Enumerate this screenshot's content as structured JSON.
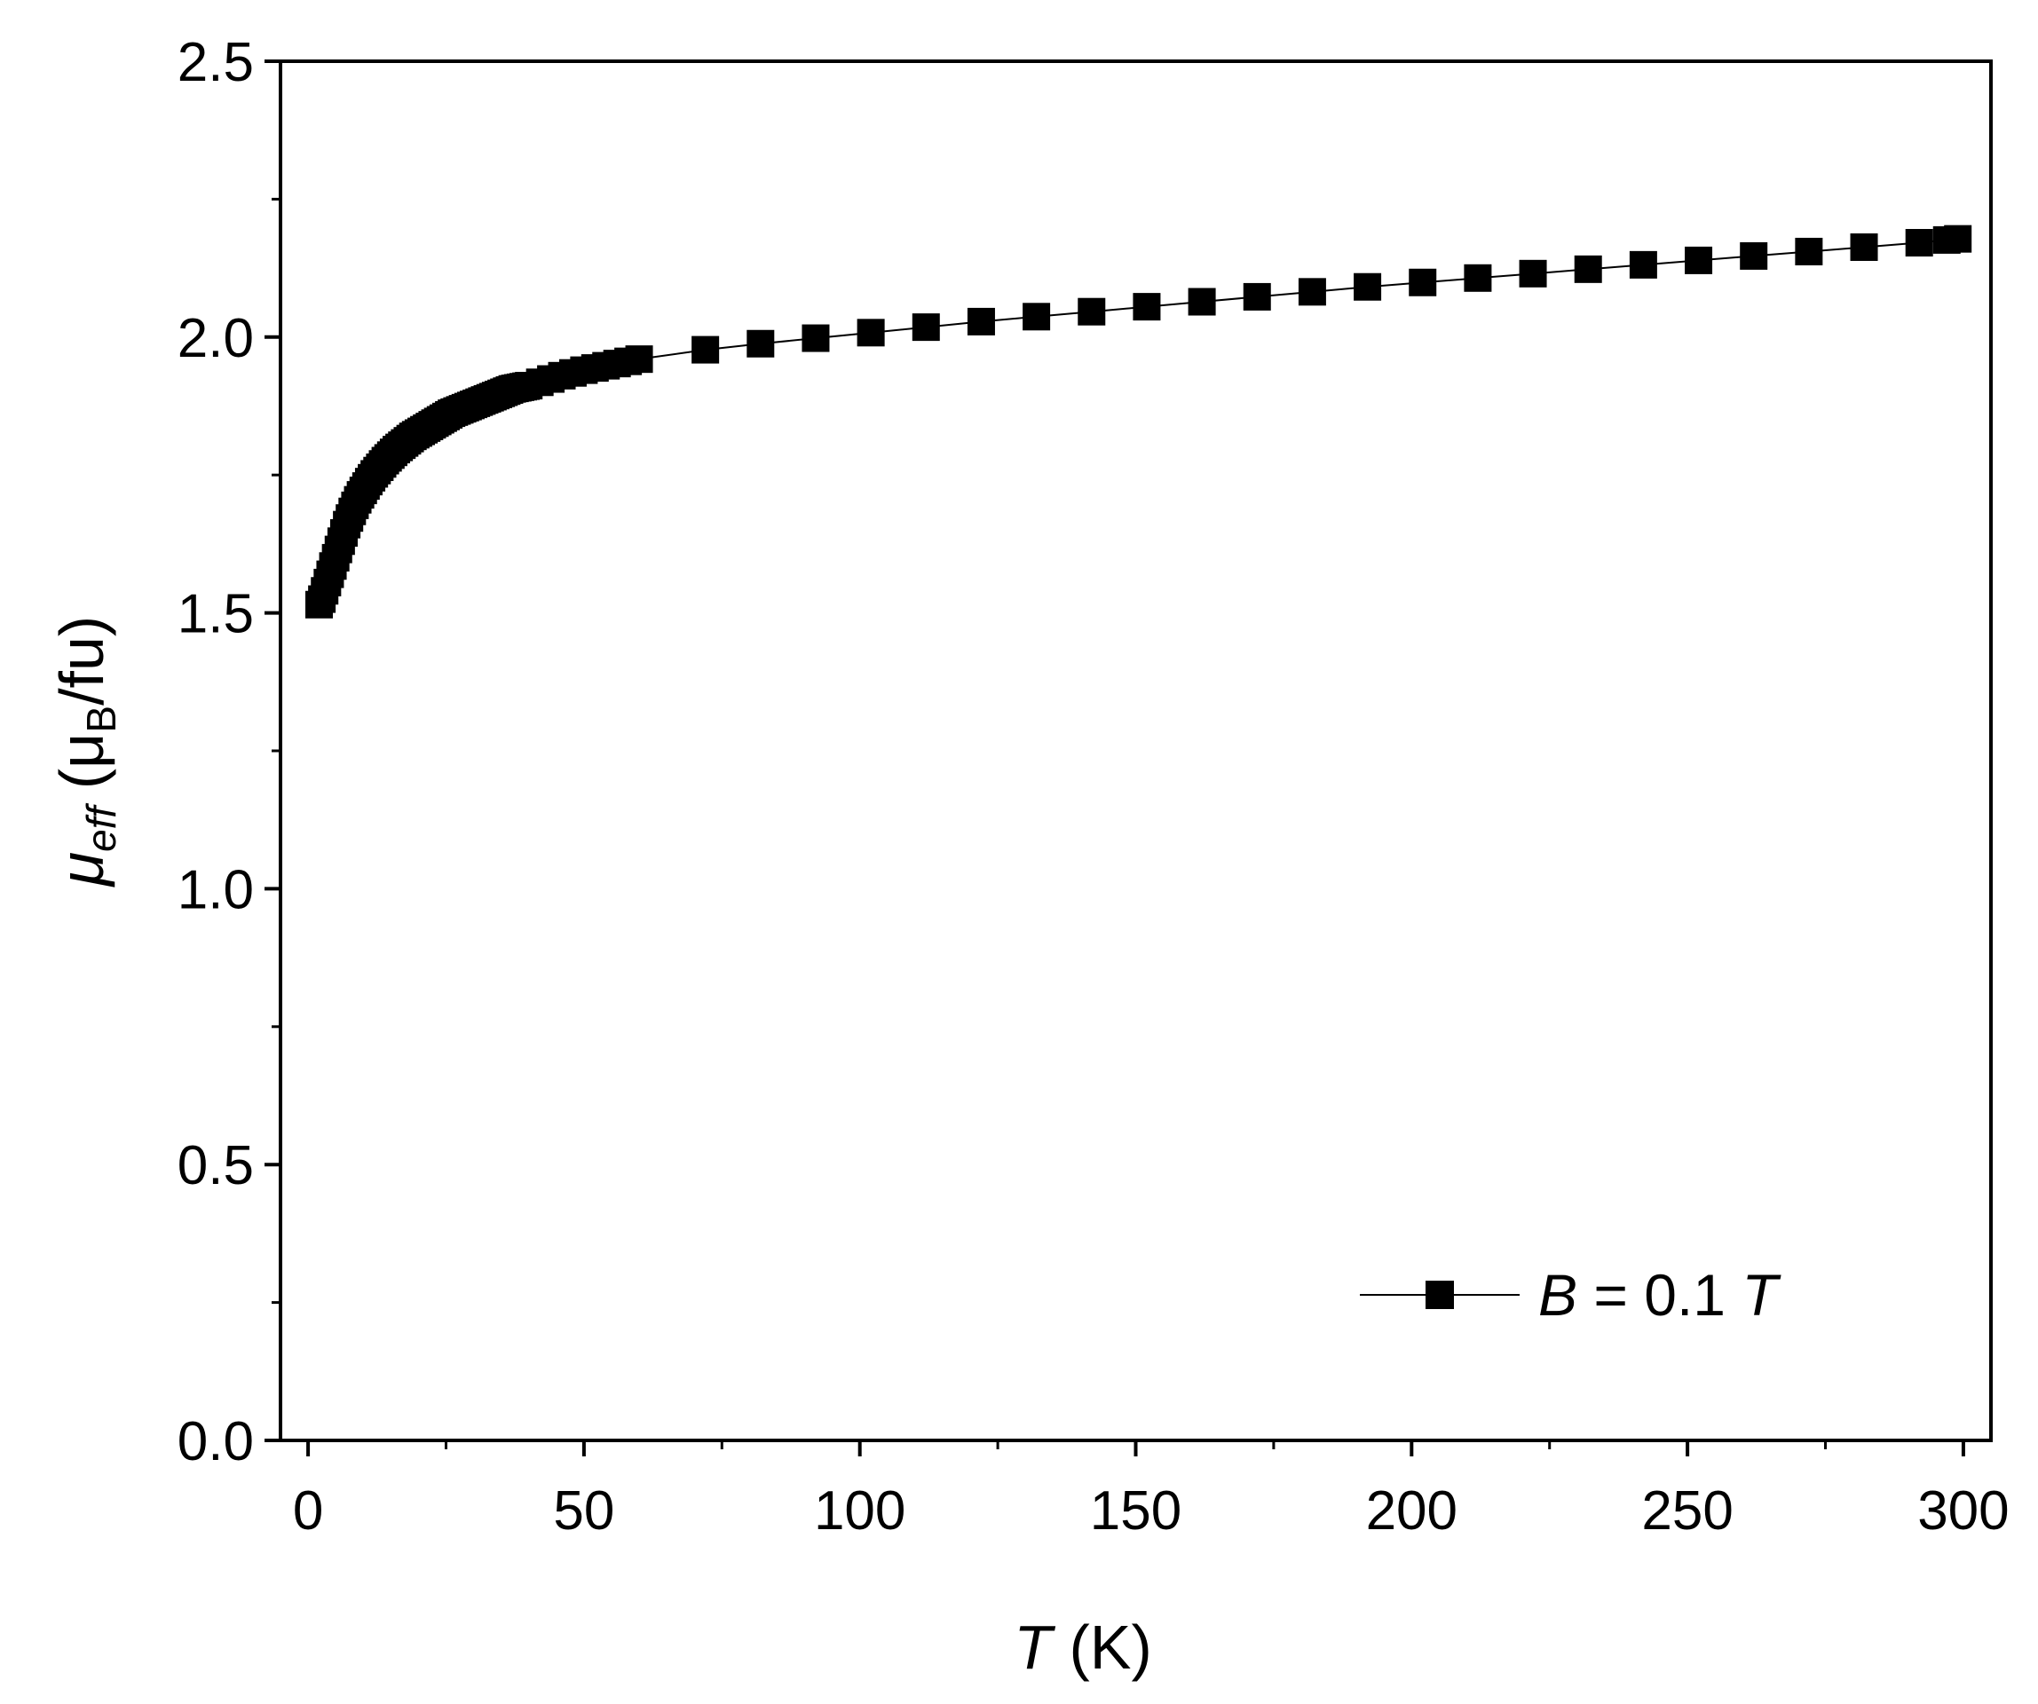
{
  "chart_data": {
    "type": "scatter",
    "xlabel": {
      "italic": "T",
      "rest": " (K)"
    },
    "ylabel": {
      "mu": "μ",
      "sub": "eff",
      "paren_open": " (μ",
      "unit_sub": "B",
      "unit_rest": "/fu)"
    },
    "xlim": [
      -5,
      305
    ],
    "ylim": [
      0,
      2.5
    ],
    "xticks": [
      "0",
      "50",
      "100",
      "150",
      "200",
      "250",
      "300"
    ],
    "xtick_values": [
      0,
      50,
      100,
      150,
      200,
      250,
      300
    ],
    "yticks": [
      "0.0",
      "0.5",
      "1.0",
      "1.5",
      "2.0",
      "2.5"
    ],
    "ytick_values": [
      0,
      0.5,
      1.0,
      1.5,
      2.0,
      2.5
    ],
    "legend": {
      "B": "B",
      "eq": " = 0.1 ",
      "T": "T",
      "placement": "bottom-right"
    },
    "marker": "square",
    "color": "#000000",
    "grid": false,
    "series": [
      {
        "x": [
          2,
          2.5,
          3,
          3.5,
          4,
          4.5,
          5,
          5.5,
          6,
          6.5,
          7,
          7.5,
          8,
          8.5,
          9,
          9.5,
          10,
          10.5,
          11,
          11.5,
          12,
          12.5,
          13,
          13.5,
          14,
          14.5,
          15,
          15.5,
          16,
          16.5,
          17,
          17.5,
          18,
          18.5,
          19,
          19.5,
          20,
          20.5,
          21,
          21.5,
          22,
          22.5,
          23,
          23.5,
          24,
          24.5,
          25,
          25.5,
          26,
          26.5,
          27,
          27.5,
          28,
          28.5,
          29,
          29.5,
          30,
          30.5,
          31,
          31.5,
          32,
          32.5,
          33,
          33.5,
          34,
          34.5,
          35,
          35.5,
          36,
          36.5,
          37,
          37.5,
          38,
          38.5,
          39,
          39.5,
          40,
          42,
          44,
          46,
          48,
          50,
          52,
          54,
          56,
          58,
          60,
          72,
          82,
          92,
          102,
          112,
          122,
          132,
          142,
          152,
          162,
          172,
          182,
          192,
          202,
          212,
          222,
          232,
          242,
          252,
          262,
          272,
          282,
          292,
          297,
          299
        ],
        "y": [
          1.515,
          1.525,
          1.54,
          1.555,
          1.57,
          1.585,
          1.6,
          1.615,
          1.63,
          1.645,
          1.66,
          1.672,
          1.684,
          1.695,
          1.705,
          1.714,
          1.722,
          1.73,
          1.738,
          1.745,
          1.752,
          1.758,
          1.764,
          1.77,
          1.776,
          1.781,
          1.786,
          1.791,
          1.796,
          1.8,
          1.804,
          1.808,
          1.812,
          1.816,
          1.82,
          1.823,
          1.826,
          1.829,
          1.832,
          1.835,
          1.838,
          1.841,
          1.844,
          1.847,
          1.85,
          1.853,
          1.856,
          1.859,
          1.862,
          1.864,
          1.866,
          1.868,
          1.87,
          1.872,
          1.874,
          1.876,
          1.878,
          1.88,
          1.882,
          1.884,
          1.886,
          1.888,
          1.89,
          1.892,
          1.894,
          1.896,
          1.898,
          1.9,
          1.902,
          1.904,
          1.906,
          1.907,
          1.908,
          1.909,
          1.91,
          1.911,
          1.912,
          1.918,
          1.924,
          1.93,
          1.935,
          1.94,
          1.944,
          1.948,
          1.952,
          1.956,
          1.96,
          1.977,
          1.988,
          1.998,
          2.008,
          2.018,
          2.028,
          2.037,
          2.046,
          2.055,
          2.064,
          2.073,
          2.082,
          2.091,
          2.099,
          2.107,
          2.115,
          2.123,
          2.131,
          2.139,
          2.147,
          2.155,
          2.163,
          2.171,
          2.176,
          2.178
        ]
      }
    ]
  }
}
